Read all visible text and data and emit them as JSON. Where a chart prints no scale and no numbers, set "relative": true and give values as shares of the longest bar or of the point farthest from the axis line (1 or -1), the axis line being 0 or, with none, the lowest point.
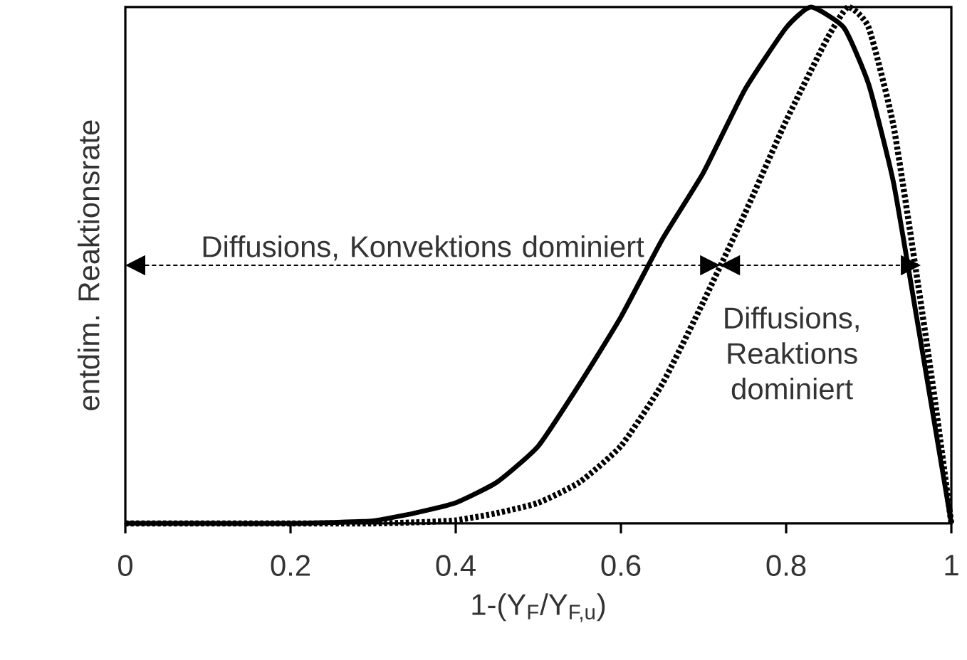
{
  "chart_data": {
    "type": "line",
    "relative": true,
    "xlabel": "1-(Y$_{F}$/Y$_{F,u}$)",
    "ylabel": "entdim. Reaktionsrate",
    "xlim": [
      0,
      1
    ],
    "xticks": [
      0,
      0.2,
      0.4,
      0.6,
      0.8,
      1
    ],
    "tick_labels": "x",
    "marker": "none",
    "series": [
      {
        "color": "#000000",
        "line_style": "solid",
        "x": [
          0,
          0.1,
          0.2,
          0.25,
          0.3,
          0.35,
          0.4,
          0.45,
          0.5,
          0.55,
          0.6,
          0.65,
          0.7,
          0.75,
          0.8,
          0.83,
          0.87,
          0.9,
          0.93,
          0.96,
          0.98,
          1.0
        ],
        "values": [
          0,
          0,
          0,
          0.002,
          0.005,
          0.02,
          0.04,
          0.08,
          0.15,
          0.27,
          0.4,
          0.55,
          0.68,
          0.84,
          0.96,
          1,
          0.96,
          0.85,
          0.66,
          0.38,
          0.19,
          0
        ]
      },
      {
        "color": "#000000",
        "line_style": "dotted",
        "x": [
          0,
          0.1,
          0.2,
          0.3,
          0.35,
          0.4,
          0.45,
          0.5,
          0.55,
          0.6,
          0.65,
          0.7,
          0.75,
          0.8,
          0.85,
          0.875,
          0.9,
          0.93,
          0.96,
          0.98,
          1.0
        ],
        "values": [
          0,
          0,
          0,
          0,
          0.002,
          0.006,
          0.02,
          0.04,
          0.08,
          0.15,
          0.27,
          0.43,
          0.6,
          0.78,
          0.94,
          1,
          0.96,
          0.77,
          0.46,
          0.24,
          0
        ]
      }
    ],
    "annotations": [
      {
        "text": "Diffusions, Konvektions dominiert",
        "x": 0.72,
        "y": 0.5
      },
      {
        "text": "Diffusions, Reaktions dominiert",
        "x": 0.963,
        "y": 0.5
      }
    ]
  }
}
